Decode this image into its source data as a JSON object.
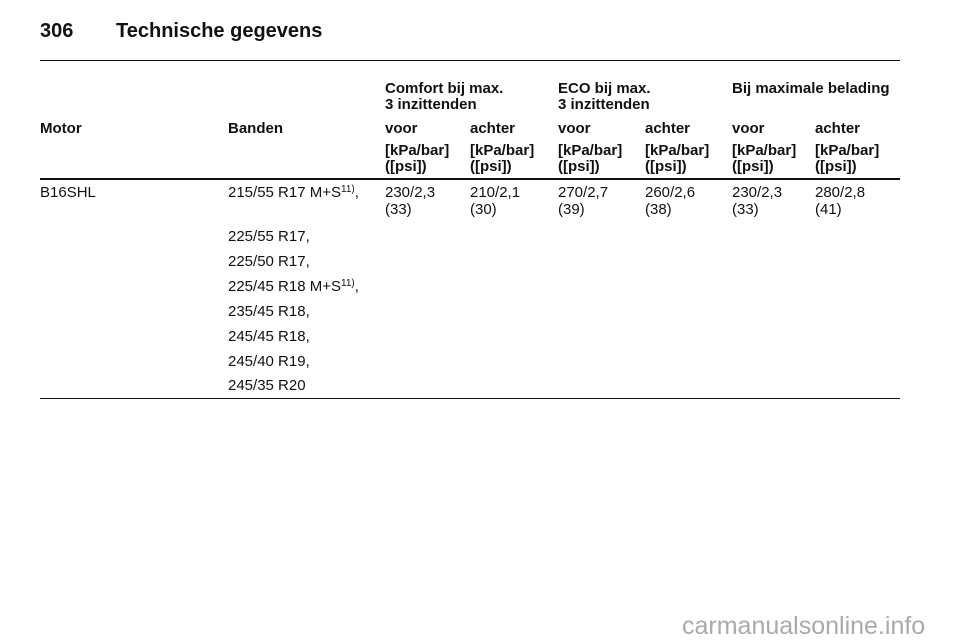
{
  "header": {
    "page": "306",
    "title": "Technische gegevens"
  },
  "table": {
    "groups": [
      "Comfort bij max.\n3 inzittenden",
      "ECO bij max.\n3 inzittenden",
      "Bij maximale belading"
    ],
    "columns": [
      "Motor",
      "Banden",
      "voor",
      "achter",
      "voor",
      "achter",
      "voor",
      "achter"
    ],
    "unit": "[kPa/bar]\n([psi])",
    "rows": [
      {
        "motor": "B16SHL",
        "tires": [
          {
            "text": "215/55 R17 M+S",
            "note": "11)",
            "after": ","
          },
          {
            "text": "225/55 R17,"
          },
          {
            "text": "225/50 R17,"
          },
          {
            "text": "225/45 R18 M+S",
            "note": "11)",
            "after": ","
          },
          {
            "text": "235/45 R18,"
          },
          {
            "text": "245/45 R18,"
          },
          {
            "text": "245/40 R19,"
          },
          {
            "text": "245/35 R20"
          }
        ],
        "pressures": [
          {
            "bar": "230/2,3",
            "psi": "(33)"
          },
          {
            "bar": "210/2,1",
            "psi": "(30)"
          },
          {
            "bar": "270/2,7",
            "psi": "(39)"
          },
          {
            "bar": "260/2,6",
            "psi": "(38)"
          },
          {
            "bar": "230/2,3",
            "psi": "(33)"
          },
          {
            "bar": "280/2,8",
            "psi": "(41)"
          }
        ]
      }
    ]
  },
  "watermark": "carmanualsonline.info"
}
